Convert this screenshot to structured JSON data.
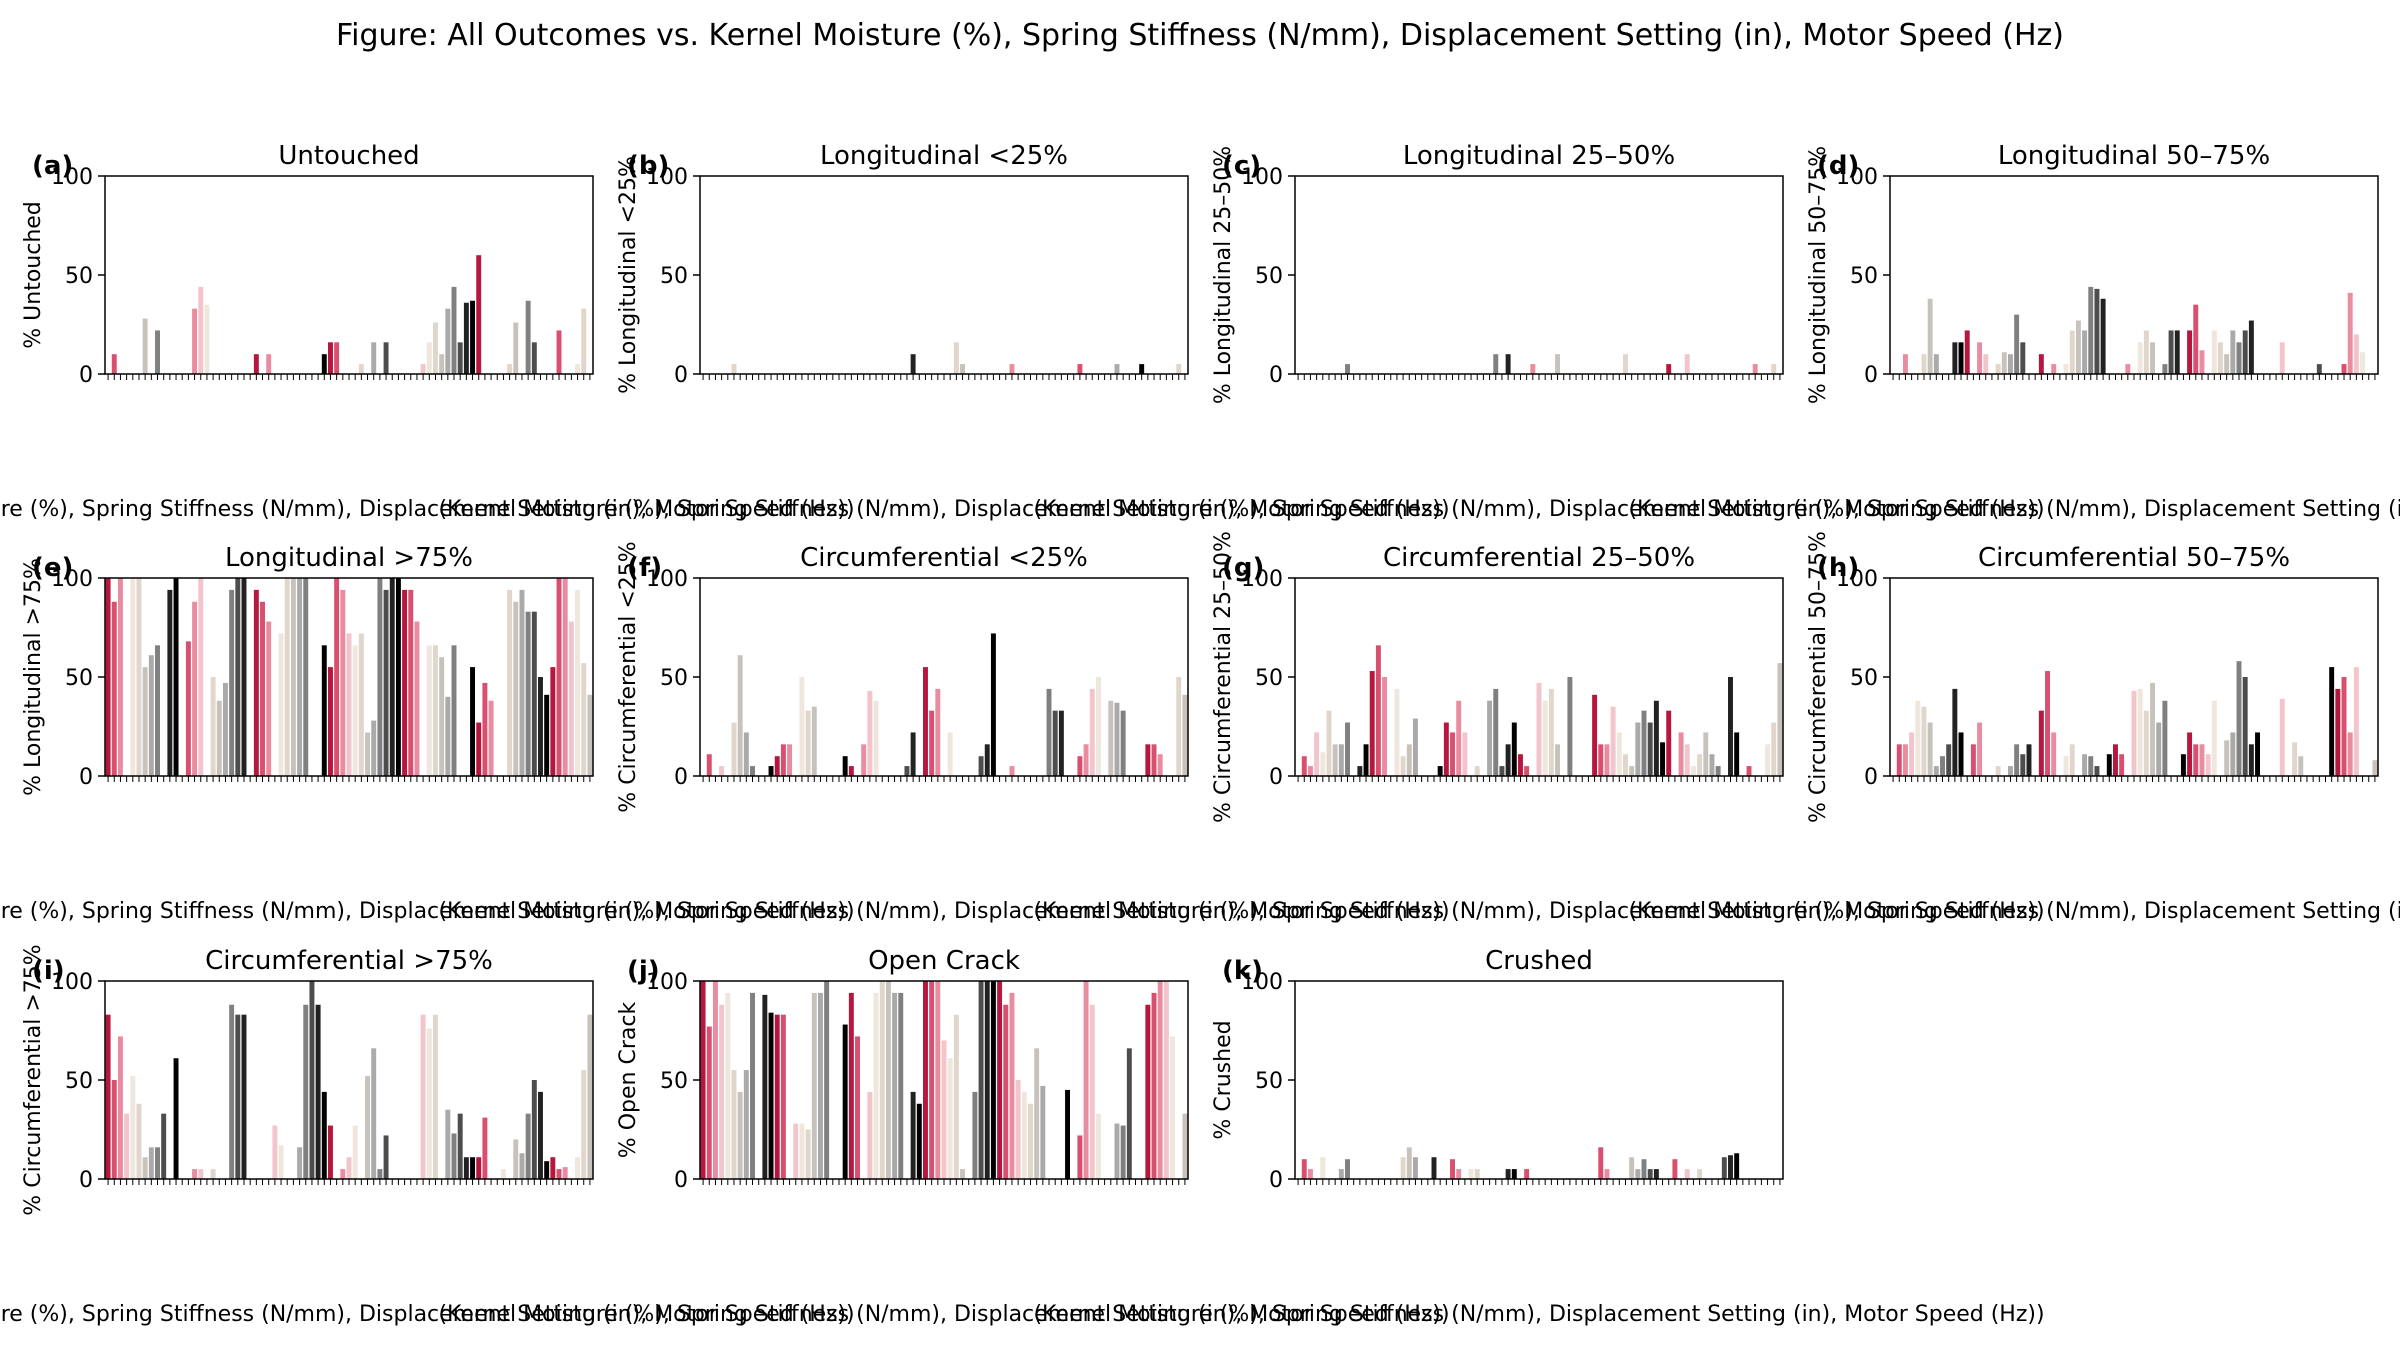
{
  "figure_title": "Figure: All Outcomes vs. Kernel Moisture (%), Spring Stiffness (N/mm), Displacement Setting (in), Motor Speed (Hz)",
  "shared_xlabel": "(Kernel Moisture (%), Spring Stiffness (N/mm), Displacement Setting (in), Motor Speed (Hz))",
  "palette": [
    "#b5173f",
    "#d94f70",
    "#e98ca0",
    "#f2c4cc",
    "#efe6dd",
    "#e0d6cc",
    "#c8c2bc",
    "#aaaaaa",
    "#808080",
    "#4d4d4d",
    "#222222",
    "#000000"
  ],
  "chart_data": [
    {
      "type": "bar",
      "letter": "(a)",
      "title": "Untouched",
      "ylabel": "% Untouched",
      "ylim": [
        0,
        100
      ],
      "yticks": [
        0,
        50,
        100
      ],
      "values": [
        0,
        10,
        0,
        0,
        0,
        0,
        28,
        0,
        22,
        0,
        0,
        0,
        0,
        0,
        33,
        44,
        35,
        0,
        0,
        0,
        0,
        0,
        0,
        0,
        10,
        0,
        10,
        0,
        0,
        0,
        0,
        0,
        0,
        0,
        0,
        10,
        16,
        16,
        0,
        0,
        0,
        5,
        0,
        16,
        0,
        16,
        0,
        0,
        0,
        0,
        0,
        5,
        16,
        26,
        10,
        33,
        44,
        16,
        36,
        37,
        60,
        0,
        0,
        0,
        0,
        5,
        26,
        0,
        37,
        16,
        0,
        0,
        0,
        22,
        0,
        0,
        5,
        33,
        0
      ]
    },
    {
      "type": "bar",
      "letter": "(b)",
      "title": "Longitudinal <25%",
      "ylabel": "% Longitudinal <25%",
      "ylim": [
        0,
        100
      ],
      "yticks": [
        0,
        50,
        100
      ],
      "values": [
        0,
        0,
        0,
        0,
        0,
        5,
        0,
        0,
        0,
        0,
        0,
        0,
        0,
        0,
        0,
        0,
        0,
        0,
        0,
        0,
        0,
        0,
        0,
        0,
        0,
        0,
        0,
        0,
        0,
        0,
        0,
        0,
        0,
        0,
        10,
        0,
        0,
        0,
        0,
        0,
        0,
        16,
        5,
        0,
        0,
        0,
        0,
        0,
        0,
        0,
        5,
        0,
        0,
        0,
        0,
        0,
        0,
        0,
        0,
        0,
        0,
        5,
        0,
        0,
        0,
        0,
        0,
        5,
        0,
        0,
        0,
        5,
        0,
        0,
        0,
        0,
        0,
        5,
        0
      ]
    },
    {
      "type": "bar",
      "letter": "(c)",
      "title": "Longitudinal 25–50%",
      "ylabel": "% Longitudinal 25–50%",
      "ylim": [
        0,
        100
      ],
      "yticks": [
        0,
        50,
        100
      ],
      "values": [
        0,
        0,
        0,
        0,
        0,
        0,
        0,
        0,
        5,
        0,
        0,
        0,
        0,
        0,
        0,
        0,
        0,
        0,
        0,
        0,
        0,
        0,
        0,
        0,
        0,
        0,
        0,
        0,
        0,
        0,
        0,
        0,
        10,
        0,
        10,
        0,
        0,
        0,
        5,
        0,
        0,
        0,
        10,
        0,
        0,
        0,
        0,
        0,
        0,
        0,
        0,
        0,
        0,
        10,
        0,
        0,
        0,
        0,
        0,
        0,
        5,
        0,
        0,
        10,
        0,
        0,
        0,
        0,
        0,
        0,
        0,
        0,
        0,
        0,
        5,
        0,
        0,
        5,
        0
      ]
    },
    {
      "type": "bar",
      "letter": "(d)",
      "title": "Longitudinal 50–75%",
      "ylabel": "% Longitudinal 50–75%",
      "ylim": [
        0,
        100
      ],
      "yticks": [
        0,
        50,
        100
      ],
      "values": [
        0,
        0,
        10,
        0,
        0,
        10,
        38,
        10,
        0,
        0,
        16,
        16,
        22,
        0,
        16,
        10,
        0,
        5,
        11,
        10,
        30,
        16,
        0,
        0,
        10,
        0,
        5,
        0,
        5,
        22,
        27,
        22,
        44,
        43,
        38,
        0,
        0,
        0,
        5,
        0,
        16,
        22,
        16,
        0,
        5,
        22,
        22,
        0,
        22,
        35,
        12,
        0,
        22,
        16,
        10,
        22,
        16,
        22,
        27,
        0,
        0,
        0,
        0,
        16,
        0,
        0,
        0,
        0,
        0,
        5,
        0,
        0,
        0,
        5,
        41,
        20,
        11,
        0,
        0
      ]
    },
    {
      "type": "bar",
      "letter": "(e)",
      "title": "Longitudinal >75%",
      "ylabel": "% Longitudinal >75%",
      "ylim": [
        0,
        100
      ],
      "yticks": [
        0,
        50,
        100
      ],
      "values": [
        100,
        88,
        100,
        0,
        100,
        100,
        55,
        61,
        66,
        0,
        94,
        100,
        0,
        68,
        88,
        100,
        0,
        50,
        38,
        47,
        94,
        100,
        100,
        0,
        94,
        88,
        78,
        0,
        72,
        100,
        100,
        100,
        100,
        0,
        0,
        66,
        55,
        100,
        94,
        72,
        66,
        72,
        22,
        28,
        100,
        94,
        100,
        100,
        94,
        94,
        78,
        0,
        66,
        66,
        60,
        40,
        66,
        0,
        0,
        55,
        27,
        47,
        38,
        0,
        0,
        94,
        88,
        94,
        83,
        83,
        50,
        41,
        55,
        100,
        100,
        78,
        94,
        57,
        41
      ]
    },
    {
      "type": "bar",
      "letter": "(f)",
      "title": "Circumferential <25%",
      "ylabel": "% Circumferential <25%",
      "ylim": [
        0,
        100
      ],
      "yticks": [
        0,
        50,
        100
      ],
      "values": [
        0,
        11,
        0,
        5,
        0,
        27,
        61,
        22,
        5,
        0,
        0,
        5,
        10,
        16,
        16,
        0,
        50,
        33,
        35,
        0,
        0,
        0,
        0,
        10,
        5,
        0,
        16,
        43,
        38,
        0,
        0,
        0,
        0,
        5,
        22,
        0,
        55,
        33,
        44,
        0,
        22,
        0,
        0,
        0,
        0,
        10,
        16,
        72,
        0,
        0,
        5,
        0,
        0,
        0,
        0,
        0,
        44,
        33,
        33,
        0,
        0,
        10,
        16,
        44,
        50,
        0,
        38,
        37,
        33,
        0,
        0,
        0,
        16,
        16,
        11,
        0,
        0,
        50,
        41
      ]
    },
    {
      "type": "bar",
      "letter": "(g)",
      "title": "Circumferential 25–50%",
      "ylabel": "% Circumferential 25–50%",
      "ylim": [
        0,
        100
      ],
      "yticks": [
        0,
        50,
        100
      ],
      "values": [
        0,
        10,
        5,
        22,
        12,
        33,
        16,
        16,
        27,
        0,
        5,
        16,
        53,
        66,
        50,
        0,
        44,
        10,
        16,
        29,
        0,
        0,
        0,
        5,
        27,
        22,
        38,
        22,
        0,
        5,
        0,
        38,
        44,
        5,
        16,
        27,
        11,
        5,
        0,
        47,
        38,
        44,
        16,
        0,
        50,
        0,
        0,
        0,
        41,
        16,
        16,
        35,
        22,
        11,
        5,
        27,
        33,
        27,
        38,
        17,
        33,
        0,
        22,
        16,
        5,
        11,
        22,
        11,
        5,
        0,
        50,
        22,
        0,
        5,
        0,
        0,
        16,
        27,
        57
      ]
    },
    {
      "type": "bar",
      "letter": "(h)",
      "title": "Circumferential 50–75%",
      "ylabel": "% Circumferential 50–75%",
      "ylim": [
        0,
        100
      ],
      "yticks": [
        0,
        50,
        100
      ],
      "values": [
        0,
        16,
        16,
        22,
        38,
        35,
        27,
        5,
        10,
        16,
        44,
        22,
        0,
        16,
        27,
        0,
        0,
        5,
        0,
        5,
        16,
        11,
        16,
        0,
        33,
        53,
        22,
        0,
        10,
        16,
        0,
        11,
        10,
        5,
        0,
        11,
        16,
        11,
        0,
        43,
        44,
        33,
        47,
        27,
        38,
        0,
        0,
        11,
        22,
        16,
        16,
        11,
        38,
        0,
        18,
        22,
        58,
        50,
        16,
        22,
        0,
        0,
        0,
        39,
        0,
        17,
        10,
        0,
        0,
        0,
        0,
        55,
        44,
        50,
        22,
        55,
        0,
        0,
        8
      ]
    },
    {
      "type": "bar",
      "letter": "(i)",
      "title": "Circumferential >75%",
      "ylabel": "% Circumferential >75%",
      "ylim": [
        0,
        100
      ],
      "yticks": [
        0,
        50,
        100
      ],
      "values": [
        83,
        50,
        72,
        33,
        52,
        38,
        11,
        16,
        16,
        33,
        0,
        61,
        0,
        0,
        5,
        5,
        0,
        5,
        0,
        0,
        88,
        83,
        83,
        0,
        0,
        0,
        0,
        27,
        17,
        0,
        0,
        16,
        88,
        100,
        88,
        44,
        27,
        0,
        5,
        11,
        27,
        0,
        52,
        66,
        5,
        22,
        0,
        0,
        0,
        0,
        0,
        83,
        76,
        83,
        0,
        35,
        23,
        33,
        11,
        11,
        11,
        31,
        0,
        0,
        5,
        0,
        20,
        13,
        33,
        50,
        44,
        9,
        11,
        5,
        6,
        0,
        11,
        55,
        83
      ]
    },
    {
      "type": "bar",
      "letter": "(j)",
      "title": "Open Crack",
      "ylabel": "% Open Crack",
      "ylim": [
        0,
        100
      ],
      "yticks": [
        0,
        50,
        100
      ],
      "values": [
        100,
        77,
        100,
        88,
        94,
        55,
        44,
        55,
        94,
        0,
        93,
        84,
        83,
        83,
        0,
        28,
        28,
        25,
        94,
        94,
        100,
        0,
        0,
        78,
        94,
        72,
        0,
        44,
        94,
        100,
        100,
        94,
        94,
        0,
        44,
        38,
        100,
        100,
        100,
        70,
        61,
        83,
        5,
        0,
        44,
        100,
        100,
        100,
        100,
        88,
        94,
        50,
        44,
        38,
        66,
        47,
        0,
        0,
        0,
        45,
        0,
        22,
        100,
        88,
        33,
        0,
        0,
        28,
        27,
        66,
        0,
        0,
        88,
        94,
        100,
        100,
        72,
        0,
        33
      ]
    },
    {
      "type": "bar",
      "letter": "(k)",
      "title": "Crushed",
      "ylabel": "% Crushed",
      "ylim": [
        0,
        100
      ],
      "yticks": [
        0,
        50,
        100
      ],
      "values": [
        0,
        10,
        5,
        0,
        11,
        0,
        0,
        5,
        10,
        0,
        0,
        0,
        0,
        0,
        0,
        0,
        0,
        11,
        16,
        11,
        0,
        0,
        11,
        0,
        0,
        10,
        5,
        0,
        5,
        5,
        0,
        0,
        0,
        0,
        5,
        5,
        0,
        5,
        0,
        0,
        0,
        0,
        0,
        0,
        0,
        0,
        0,
        0,
        0,
        16,
        5,
        0,
        0,
        0,
        11,
        5,
        10,
        5,
        5,
        0,
        0,
        10,
        0,
        5,
        0,
        5,
        0,
        0,
        0,
        11,
        12,
        13,
        0,
        0,
        0,
        0,
        0,
        0,
        0
      ]
    }
  ]
}
